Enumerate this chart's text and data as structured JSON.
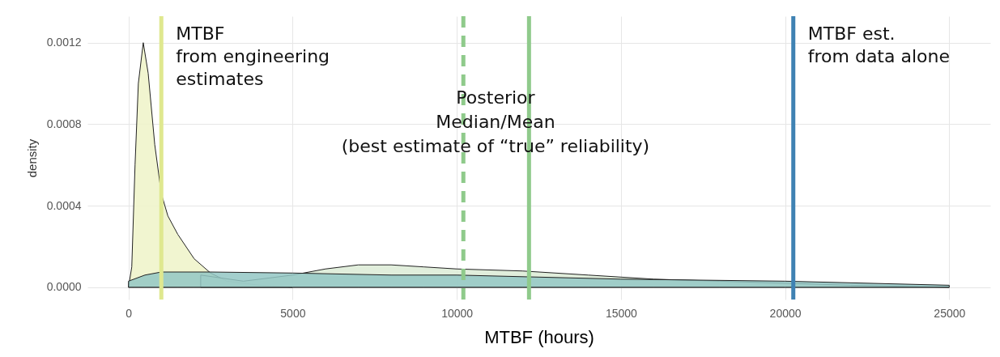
{
  "chart_data": {
    "type": "area",
    "xlabel": "MTBF (hours)",
    "ylabel": "density",
    "xlim": [
      -1250,
      26250
    ],
    "ylim": [
      -6e-05,
      0.00133
    ],
    "xticks": [
      0,
      5000,
      10000,
      15000,
      20000,
      25000
    ],
    "yticks": [
      {
        "value": 0,
        "label": "0.0000"
      },
      {
        "value": 0.0004,
        "label": "0.0004"
      },
      {
        "value": 0.0008,
        "label": "0.0008"
      },
      {
        "value": 0.0012,
        "label": "0.0012"
      }
    ],
    "grid": true,
    "series": [
      {
        "color": "#eef3c8",
        "x": [
          0,
          100,
          200,
          300,
          450,
          600,
          800,
          1000,
          1200,
          1500,
          2000,
          2500,
          3000,
          4000,
          5000
        ],
        "values": [
          0,
          0.0001,
          0.0006,
          0.001,
          0.0012,
          0.00105,
          0.0007,
          0.00046,
          0.00035,
          0.00026,
          0.00014,
          7e-05,
          3e-05,
          1e-05,
          0
        ]
      },
      {
        "color": "#dcebd6",
        "x": [
          2200,
          3500,
          5000,
          6000,
          7000,
          8000,
          9000,
          10000,
          12000,
          14000,
          16000,
          18000,
          20000,
          22000,
          25000
        ],
        "values": [
          6e-05,
          3e-05,
          6e-05,
          9e-05,
          0.00011,
          0.00011,
          0.0001,
          9e-05,
          8e-05,
          6e-05,
          4e-05,
          3e-05,
          2e-05,
          1e-05,
          0
        ]
      },
      {
        "color": "#93c7c4",
        "x": [
          0,
          500,
          1000,
          2500,
          5000,
          8000,
          10000,
          15000,
          20000,
          25000
        ],
        "values": [
          3e-05,
          6e-05,
          7.5e-05,
          7.5e-05,
          7e-05,
          6e-05,
          6e-05,
          4e-05,
          3e-05,
          1e-05
        ]
      }
    ],
    "ref_lines": [
      {
        "axis": "x",
        "value": 1000,
        "label": "MTBF\nfrom engineering\nestimates",
        "color": "#dfe88f",
        "line_style": "solid"
      },
      {
        "axis": "x",
        "value": 10200,
        "color": "#8fca8b",
        "line_style": "dashed"
      },
      {
        "axis": "x",
        "value": 12200,
        "color": "#8fca8b",
        "line_style": "solid"
      },
      {
        "axis": "x",
        "value": 20250,
        "label": "MTBF est.\nfrom data alone",
        "color": "#3f82b3",
        "line_style": "solid"
      }
    ],
    "annotations": [
      "Posterior\nMedian/Mean\n(best estimate of “true” reliability)"
    ]
  }
}
